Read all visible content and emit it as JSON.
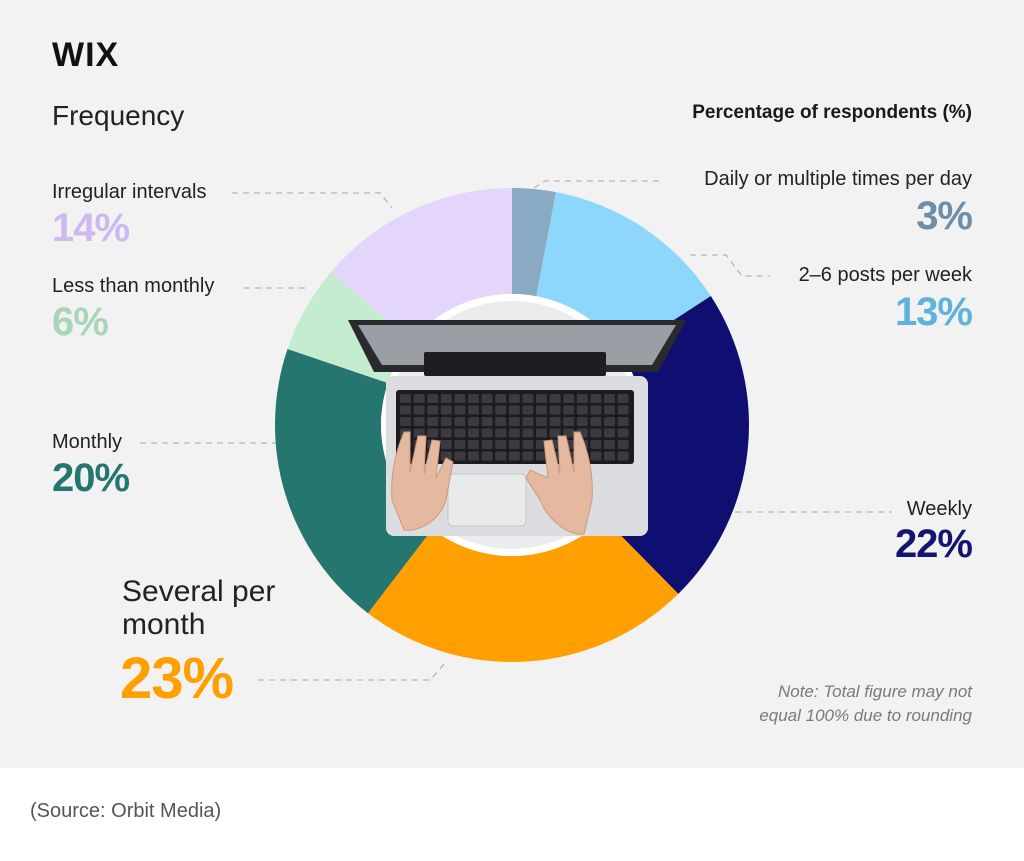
{
  "brand": "WIX",
  "frequency_heading": "Frequency",
  "percentage_heading": "Percentage of respondents (%)",
  "note_line1": "Note: Total figure may not",
  "note_line2": "equal 100% due to rounding",
  "source": "(Source: Orbit Media)",
  "chart_data": {
    "type": "pie",
    "categories": [
      "Daily or multiple times per day",
      "2–6 posts per week",
      "Weekly",
      "Several per month",
      "Monthly",
      "Less than monthly",
      "Irregular intervals"
    ],
    "values": [
      3,
      13,
      22,
      23,
      20,
      6,
      14
    ],
    "value_labels": [
      "3%",
      "13%",
      "22%",
      "23%",
      "20%",
      "6%",
      "14%"
    ],
    "colors": [
      "#8aa9c2",
      "#8cd7fb",
      "#0f0f72",
      "#ff9f00",
      "#24766f",
      "#c6ecd0",
      "#e4d6fb"
    ],
    "label_colors": [
      "#6e8ea8",
      "#5fb2dd",
      "#141472",
      "#ff9f00",
      "#24766f",
      "#a9d6b6",
      "#cdb9ef"
    ],
    "inner_image": "laptop-keyboard-hands-photo"
  }
}
